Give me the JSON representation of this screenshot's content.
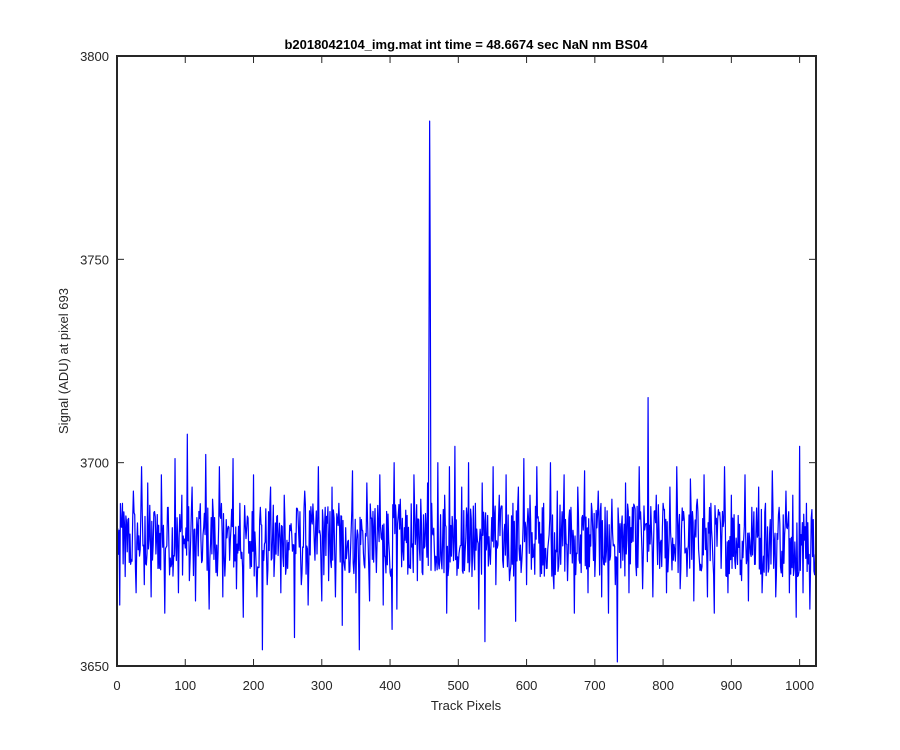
{
  "chart_data": {
    "type": "line",
    "title": "b2018042104_img.mat int time = 48.6674 sec  NaN nm BS04",
    "xlabel": "Track Pixels",
    "ylabel": "Signal (ADU) at pixel 693",
    "xlim": [
      0,
      1024
    ],
    "ylim": [
      3650,
      3800
    ],
    "xticks": [
      0,
      100,
      200,
      300,
      400,
      500,
      600,
      700,
      800,
      900,
      1000
    ],
    "yticks": [
      3650,
      3700,
      3750,
      3800
    ],
    "grid": false,
    "legend": "none",
    "series": [
      {
        "color": "#0000ff",
        "noise_baseline": 3681,
        "noise_amplitude": 9,
        "points": [
          [
            0,
            3678
          ],
          [
            4,
            3665
          ],
          [
            8,
            3690
          ],
          [
            12,
            3672
          ],
          [
            16,
            3686
          ],
          [
            20,
            3675
          ],
          [
            24,
            3693
          ],
          [
            28,
            3668
          ],
          [
            32,
            3682
          ],
          [
            36,
            3699
          ],
          [
            40,
            3670
          ],
          [
            45,
            3695
          ],
          [
            50,
            3667
          ],
          [
            55,
            3688
          ],
          [
            60,
            3674
          ],
          [
            65,
            3697
          ],
          [
            70,
            3663
          ],
          [
            75,
            3689
          ],
          [
            80,
            3675
          ],
          [
            85,
            3701
          ],
          [
            90,
            3668
          ],
          [
            95,
            3692
          ],
          [
            100,
            3679
          ],
          [
            103,
            3707
          ],
          [
            106,
            3671
          ],
          [
            110,
            3694
          ],
          [
            115,
            3666
          ],
          [
            120,
            3688
          ],
          [
            125,
            3676
          ],
          [
            130,
            3702
          ],
          [
            135,
            3664
          ],
          [
            140,
            3691
          ],
          [
            145,
            3673
          ],
          [
            150,
            3699
          ],
          [
            155,
            3667
          ],
          [
            160,
            3686
          ],
          [
            165,
            3676
          ],
          [
            170,
            3701
          ],
          [
            175,
            3669
          ],
          [
            180,
            3690
          ],
          [
            185,
            3662
          ],
          [
            190,
            3684
          ],
          [
            195,
            3674
          ],
          [
            200,
            3697
          ],
          [
            205,
            3667
          ],
          [
            210,
            3689
          ],
          [
            213,
            3654
          ],
          [
            216,
            3680
          ],
          [
            220,
            3670
          ],
          [
            225,
            3694
          ],
          [
            230,
            3672
          ],
          [
            235,
            3687
          ],
          [
            240,
            3668
          ],
          [
            245,
            3692
          ],
          [
            250,
            3674
          ],
          [
            255,
            3685
          ],
          [
            260,
            3657
          ],
          [
            265,
            3688
          ],
          [
            270,
            3670
          ],
          [
            275,
            3693
          ],
          [
            280,
            3665
          ],
          [
            285,
            3686
          ],
          [
            290,
            3676
          ],
          [
            295,
            3699
          ],
          [
            300,
            3666
          ],
          [
            305,
            3689
          ],
          [
            310,
            3671
          ],
          [
            315,
            3694
          ],
          [
            320,
            3667
          ],
          [
            325,
            3690
          ],
          [
            330,
            3660
          ],
          [
            335,
            3684
          ],
          [
            340,
            3673
          ],
          [
            345,
            3698
          ],
          [
            350,
            3668
          ],
          [
            355,
            3654
          ],
          [
            358,
            3686
          ],
          [
            362,
            3675
          ],
          [
            366,
            3695
          ],
          [
            370,
            3666
          ],
          [
            375,
            3688
          ],
          [
            380,
            3673
          ],
          [
            385,
            3697
          ],
          [
            390,
            3665
          ],
          [
            395,
            3688
          ],
          [
            400,
            3673
          ],
          [
            403,
            3659
          ],
          [
            406,
            3700
          ],
          [
            410,
            3664
          ],
          [
            415,
            3691
          ],
          [
            420,
            3676
          ],
          [
            425,
            3687
          ],
          [
            430,
            3674
          ],
          [
            435,
            3697
          ],
          [
            440,
            3671
          ],
          [
            445,
            3691
          ],
          [
            450,
            3679
          ],
          [
            455,
            3695
          ],
          [
            457,
            3728
          ],
          [
            458,
            3784
          ],
          [
            459,
            3742
          ],
          [
            461,
            3690
          ],
          [
            465,
            3678
          ],
          [
            470,
            3700
          ],
          [
            475,
            3676
          ],
          [
            480,
            3692
          ],
          [
            483,
            3663
          ],
          [
            487,
            3699
          ],
          [
            490,
            3677
          ],
          [
            495,
            3704
          ],
          [
            500,
            3674
          ],
          [
            505,
            3694
          ],
          [
            510,
            3678
          ],
          [
            515,
            3700
          ],
          [
            520,
            3672
          ],
          [
            525,
            3690
          ],
          [
            530,
            3664
          ],
          [
            535,
            3695
          ],
          [
            539,
            3656
          ],
          [
            543,
            3687
          ],
          [
            547,
            3675
          ],
          [
            551,
            3699
          ],
          [
            555,
            3670
          ],
          [
            560,
            3692
          ],
          [
            565,
            3676
          ],
          [
            570,
            3697
          ],
          [
            575,
            3671
          ],
          [
            580,
            3690
          ],
          [
            584,
            3661
          ],
          [
            588,
            3694
          ],
          [
            592,
            3673
          ],
          [
            596,
            3701
          ],
          [
            600,
            3670
          ],
          [
            605,
            3692
          ],
          [
            610,
            3677
          ],
          [
            615,
            3699
          ],
          [
            620,
            3672
          ],
          [
            625,
            3690
          ],
          [
            630,
            3674
          ],
          [
            635,
            3700
          ],
          [
            640,
            3669
          ],
          [
            645,
            3693
          ],
          [
            650,
            3675
          ],
          [
            655,
            3697
          ],
          [
            660,
            3671
          ],
          [
            665,
            3689
          ],
          [
            670,
            3663
          ],
          [
            675,
            3694
          ],
          [
            680,
            3673
          ],
          [
            685,
            3698
          ],
          [
            690,
            3668
          ],
          [
            695,
            3690
          ],
          [
            700,
            3672
          ],
          [
            705,
            3693
          ],
          [
            710,
            3667
          ],
          [
            715,
            3689
          ],
          [
            720,
            3663
          ],
          [
            725,
            3691
          ],
          [
            730,
            3670
          ],
          [
            733,
            3651
          ],
          [
            737,
            3685
          ],
          [
            741,
            3676
          ],
          [
            745,
            3695
          ],
          [
            750,
            3668
          ],
          [
            755,
            3689
          ],
          [
            760,
            3675
          ],
          [
            765,
            3699
          ],
          [
            770,
            3669
          ],
          [
            775,
            3685
          ],
          [
            778,
            3716
          ],
          [
            781,
            3680
          ],
          [
            785,
            3667
          ],
          [
            790,
            3692
          ],
          [
            795,
            3674
          ],
          [
            800,
            3690
          ],
          [
            805,
            3668
          ],
          [
            810,
            3694
          ],
          [
            815,
            3676
          ],
          [
            820,
            3699
          ],
          [
            825,
            3669
          ],
          [
            830,
            3688
          ],
          [
            835,
            3672
          ],
          [
            840,
            3696
          ],
          [
            845,
            3666
          ],
          [
            850,
            3691
          ],
          [
            855,
            3675
          ],
          [
            860,
            3697
          ],
          [
            865,
            3667
          ],
          [
            870,
            3690
          ],
          [
            875,
            3663
          ],
          [
            880,
            3686
          ],
          [
            885,
            3674
          ],
          [
            890,
            3699
          ],
          [
            895,
            3668
          ],
          [
            900,
            3692
          ],
          [
            905,
            3676
          ],
          [
            910,
            3687
          ],
          [
            915,
            3671
          ],
          [
            920,
            3697
          ],
          [
            925,
            3666
          ],
          [
            930,
            3689
          ],
          [
            935,
            3675
          ],
          [
            940,
            3694
          ],
          [
            945,
            3668
          ],
          [
            950,
            3690
          ],
          [
            955,
            3674
          ],
          [
            960,
            3698
          ],
          [
            965,
            3667
          ],
          [
            970,
            3689
          ],
          [
            975,
            3672
          ],
          [
            980,
            3693
          ],
          [
            985,
            3668
          ],
          [
            990,
            3692
          ],
          [
            995,
            3662
          ],
          [
            1000,
            3704
          ],
          [
            1005,
            3668
          ],
          [
            1010,
            3690
          ],
          [
            1015,
            3664
          ],
          [
            1020,
            3686
          ],
          [
            1024,
            3672
          ]
        ]
      }
    ]
  }
}
